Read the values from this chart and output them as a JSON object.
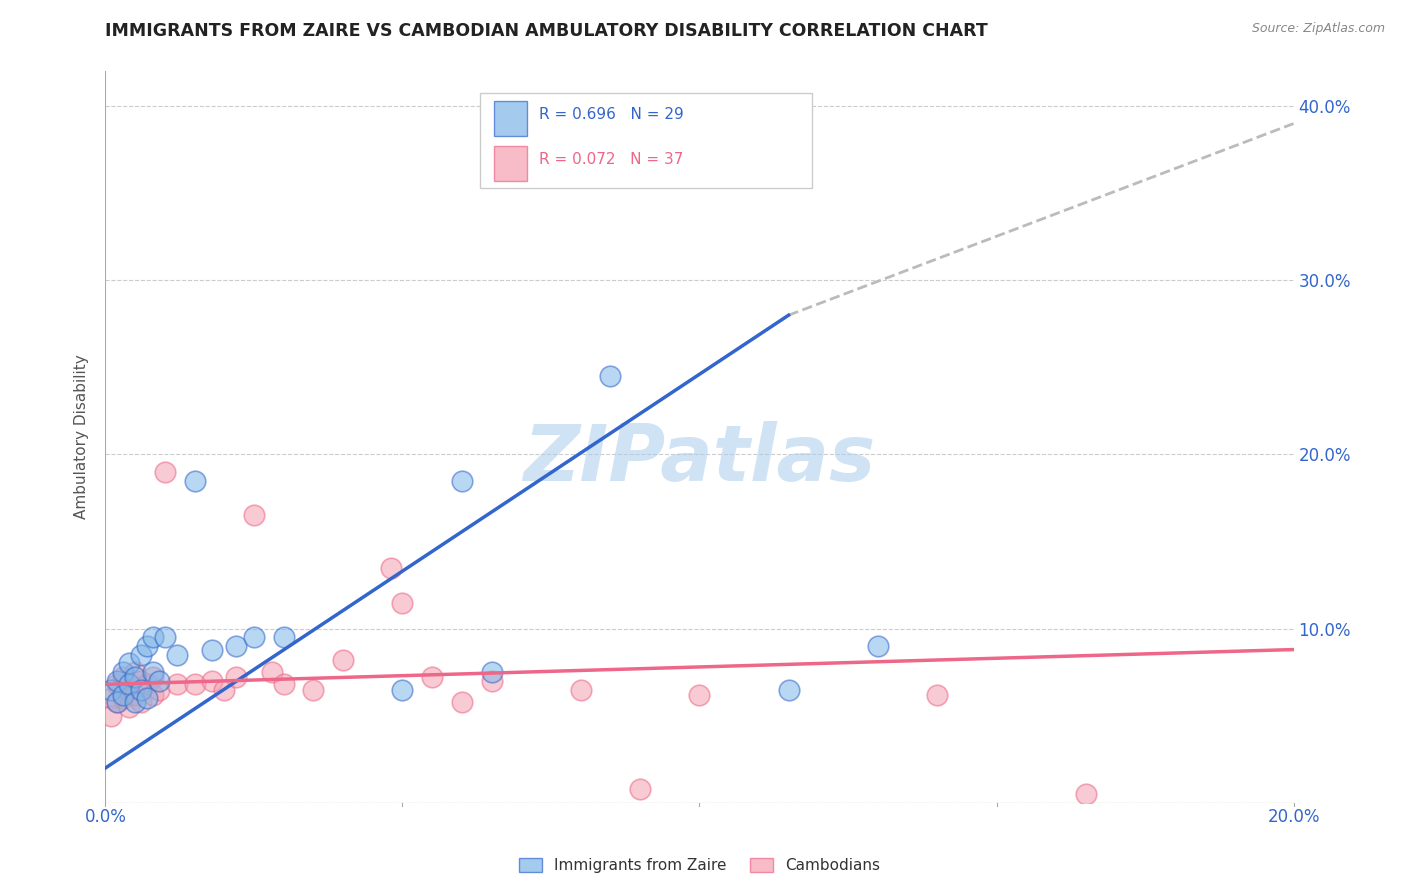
{
  "title": "IMMIGRANTS FROM ZAIRE VS CAMBODIAN AMBULATORY DISABILITY CORRELATION CHART",
  "source": "Source: ZipAtlas.com",
  "ylabel": "Ambulatory Disability",
  "xlim": [
    0.0,
    0.2
  ],
  "ylim": [
    0.0,
    0.42
  ],
  "xticks": [
    0.0,
    0.05,
    0.1,
    0.15,
    0.2
  ],
  "xtick_labels": [
    "0.0%",
    "",
    "",
    "",
    "20.0%"
  ],
  "yticks": [
    0.0,
    0.1,
    0.2,
    0.3,
    0.4
  ],
  "right_ytick_labels": [
    "",
    "10.0%",
    "20.0%",
    "30.0%",
    "40.0%"
  ],
  "legend_R1": "R = 0.696",
  "legend_N1": "N = 29",
  "legend_R2": "R = 0.072",
  "legend_N2": "N = 37",
  "color_blue": "#7EB6E8",
  "color_pink": "#F4A0B0",
  "color_line_blue": "#3366CC",
  "color_line_pink": "#EE6688",
  "color_line_dash": "#BBBBBB",
  "watermark": "ZIPatlas",
  "watermark_color": "#AACCEE",
  "blue_line_x0": 0.0,
  "blue_line_y0": 0.02,
  "blue_line_x1": 0.115,
  "blue_line_y1": 0.28,
  "pink_line_x0": 0.0,
  "pink_line_y0": 0.068,
  "pink_line_x1": 0.2,
  "pink_line_y1": 0.088,
  "dash_line_x0": 0.115,
  "dash_line_y0": 0.28,
  "dash_line_x1": 0.2,
  "dash_line_y1": 0.39,
  "zaire_x": [
    0.001,
    0.002,
    0.002,
    0.003,
    0.003,
    0.004,
    0.004,
    0.005,
    0.005,
    0.006,
    0.006,
    0.007,
    0.007,
    0.008,
    0.008,
    0.009,
    0.01,
    0.012,
    0.015,
    0.018,
    0.022,
    0.025,
    0.03,
    0.05,
    0.065,
    0.085,
    0.115,
    0.13,
    0.06
  ],
  "zaire_y": [
    0.065,
    0.07,
    0.058,
    0.075,
    0.062,
    0.08,
    0.068,
    0.072,
    0.058,
    0.085,
    0.065,
    0.09,
    0.06,
    0.095,
    0.075,
    0.07,
    0.095,
    0.085,
    0.185,
    0.088,
    0.09,
    0.095,
    0.095,
    0.065,
    0.075,
    0.245,
    0.065,
    0.09,
    0.185
  ],
  "cambodian_x": [
    0.001,
    0.001,
    0.002,
    0.002,
    0.003,
    0.003,
    0.004,
    0.004,
    0.005,
    0.005,
    0.006,
    0.006,
    0.007,
    0.008,
    0.008,
    0.009,
    0.01,
    0.012,
    0.015,
    0.018,
    0.02,
    0.022,
    0.025,
    0.028,
    0.03,
    0.035,
    0.04,
    0.048,
    0.055,
    0.06,
    0.065,
    0.08,
    0.09,
    0.1,
    0.14,
    0.165,
    0.05
  ],
  "cambodian_y": [
    0.06,
    0.05,
    0.068,
    0.058,
    0.072,
    0.06,
    0.065,
    0.055,
    0.075,
    0.062,
    0.07,
    0.058,
    0.068,
    0.072,
    0.062,
    0.065,
    0.19,
    0.068,
    0.068,
    0.07,
    0.065,
    0.072,
    0.165,
    0.075,
    0.068,
    0.065,
    0.082,
    0.135,
    0.072,
    0.058,
    0.07,
    0.065,
    0.008,
    0.062,
    0.062,
    0.005,
    0.115
  ]
}
